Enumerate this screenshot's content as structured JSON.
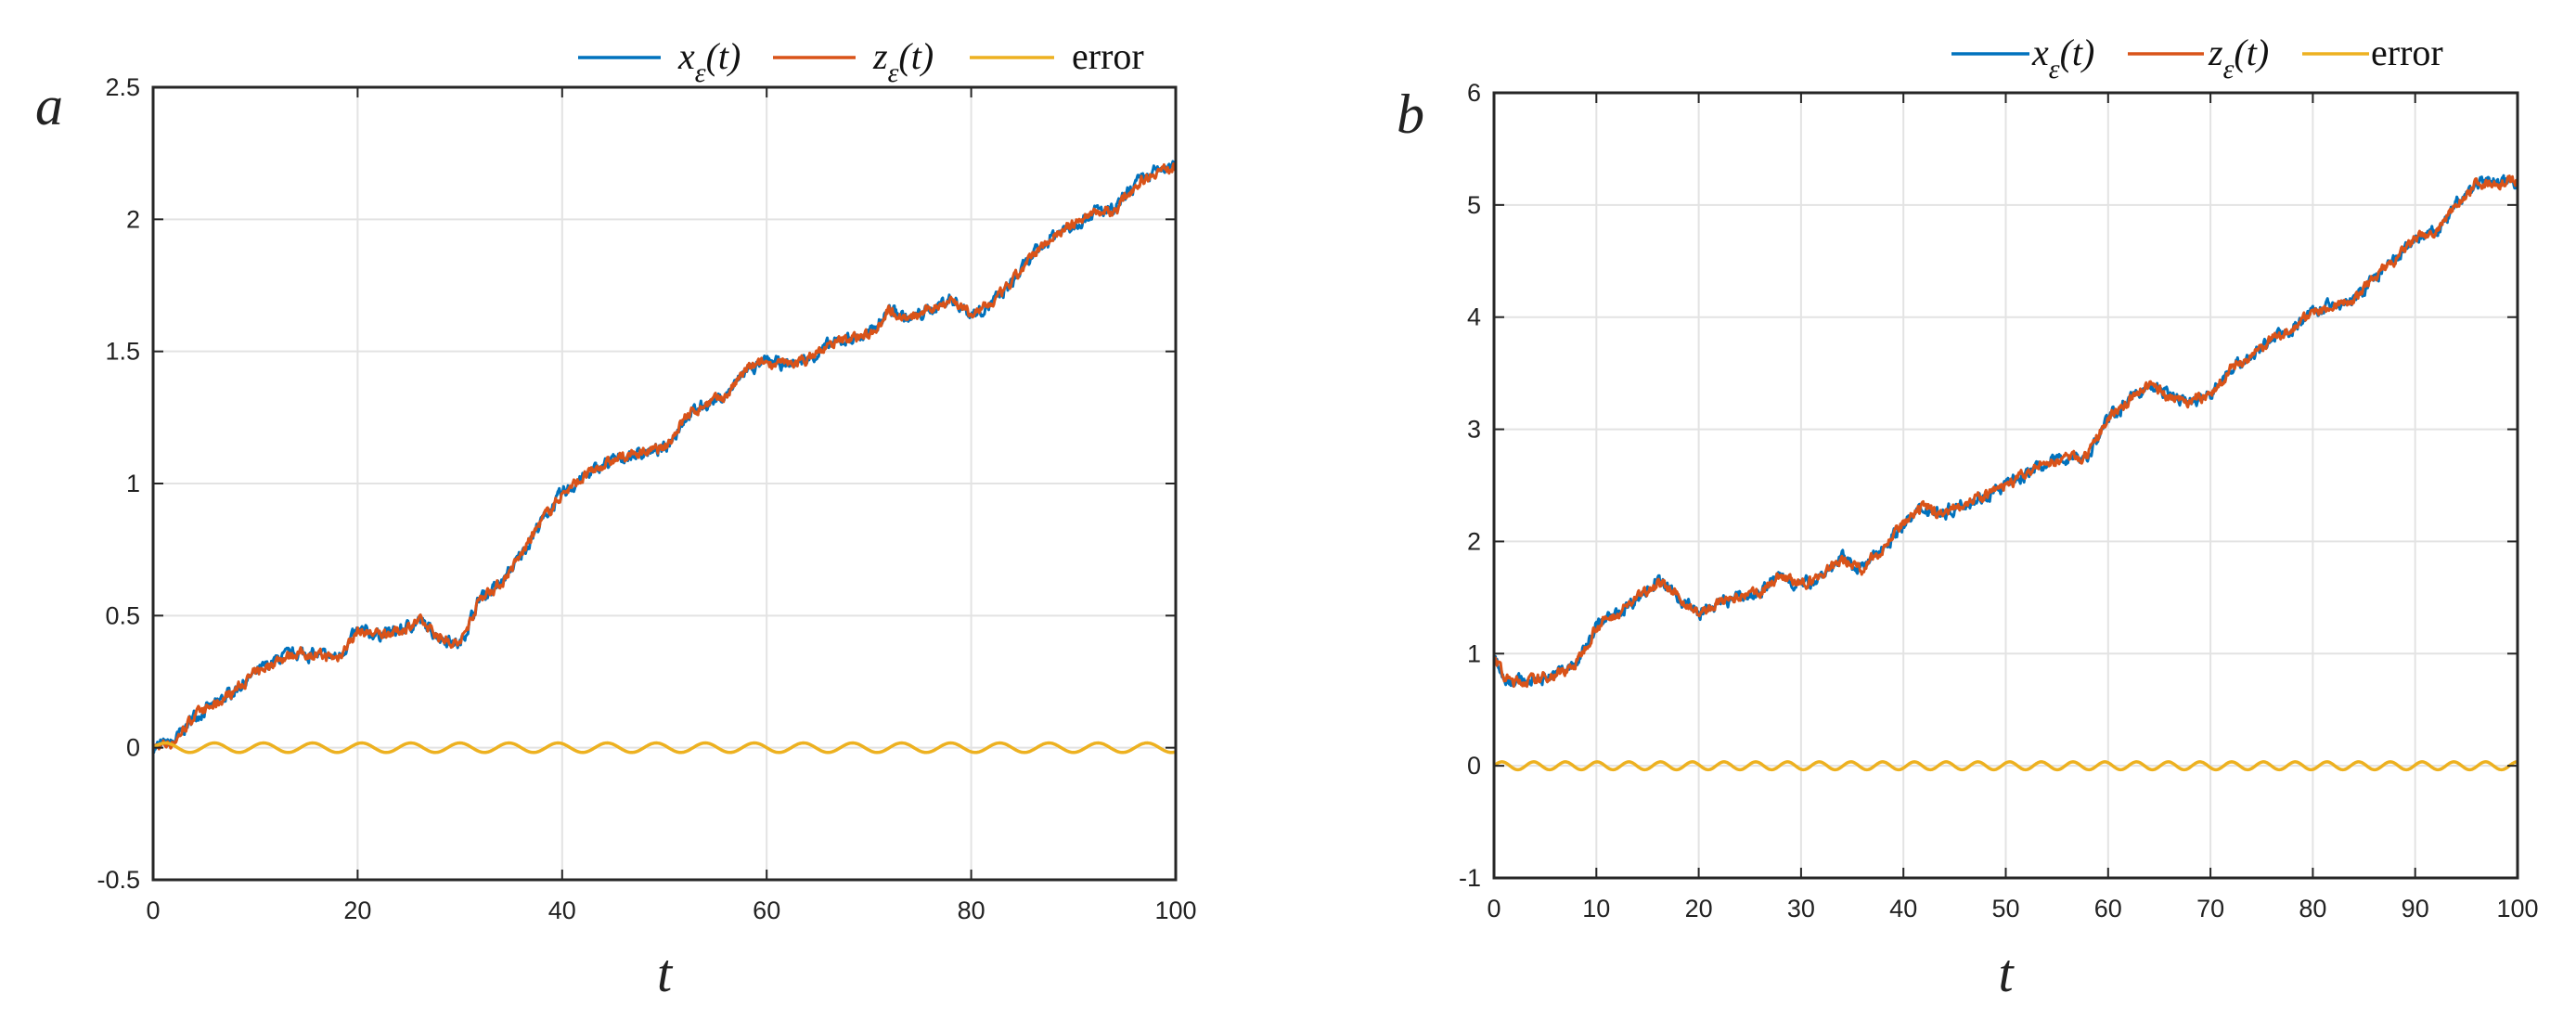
{
  "chart_data": [
    {
      "panel_label": "a",
      "type": "line",
      "xlabel": "t",
      "ylabel": "",
      "xlim": [
        0,
        100
      ],
      "ylim": [
        -0.5,
        2.5
      ],
      "xticks": [
        0,
        20,
        40,
        60,
        80,
        100
      ],
      "xtick_labels": [
        "0",
        "20",
        "40",
        "60",
        "80",
        "100"
      ],
      "yticks": [
        -0.5,
        0,
        0.5,
        1,
        1.5,
        2,
        2.5
      ],
      "ytick_labels": [
        "-0.5",
        "0",
        "0.5",
        "1",
        "1.5",
        "2",
        "2.5"
      ],
      "grid": true,
      "legend_position": "top, above plot, right-aligned, horizontal",
      "series": [
        {
          "name": "x_ε(t)",
          "color": "#0072BD",
          "x": [
            0,
            2,
            4,
            6,
            8,
            10,
            12,
            14,
            16,
            18,
            20,
            22,
            24,
            26,
            28,
            30,
            32,
            34,
            36,
            38,
            40,
            42,
            44,
            46,
            48,
            50,
            52,
            54,
            56,
            58,
            60,
            62,
            64,
            66,
            68,
            70,
            72,
            74,
            76,
            78,
            80,
            82,
            84,
            86,
            88,
            90,
            92,
            94,
            96,
            98,
            100
          ],
          "values": [
            0.0,
            0.02,
            0.12,
            0.16,
            0.22,
            0.28,
            0.33,
            0.36,
            0.35,
            0.34,
            0.44,
            0.43,
            0.44,
            0.48,
            0.42,
            0.39,
            0.57,
            0.62,
            0.73,
            0.86,
            0.96,
            1.02,
            1.07,
            1.1,
            1.12,
            1.13,
            1.25,
            1.3,
            1.33,
            1.43,
            1.46,
            1.45,
            1.47,
            1.52,
            1.55,
            1.56,
            1.66,
            1.62,
            1.66,
            1.7,
            1.64,
            1.68,
            1.76,
            1.86,
            1.94,
            1.98,
            2.03,
            2.03,
            2.13,
            2.18,
            2.2
          ]
        },
        {
          "name": "z_ε(t)",
          "color": "#D95319",
          "x": [
            0,
            2,
            4,
            6,
            8,
            10,
            12,
            14,
            16,
            18,
            20,
            22,
            24,
            26,
            28,
            30,
            32,
            34,
            36,
            38,
            40,
            42,
            44,
            46,
            48,
            50,
            52,
            54,
            56,
            58,
            60,
            62,
            64,
            66,
            68,
            70,
            72,
            74,
            76,
            78,
            80,
            82,
            84,
            86,
            88,
            90,
            92,
            94,
            96,
            98,
            100
          ],
          "values": [
            0.0,
            0.02,
            0.12,
            0.16,
            0.22,
            0.28,
            0.33,
            0.36,
            0.35,
            0.34,
            0.44,
            0.43,
            0.44,
            0.48,
            0.42,
            0.39,
            0.57,
            0.62,
            0.73,
            0.86,
            0.96,
            1.02,
            1.07,
            1.1,
            1.12,
            1.13,
            1.25,
            1.3,
            1.33,
            1.43,
            1.46,
            1.45,
            1.47,
            1.52,
            1.55,
            1.56,
            1.66,
            1.62,
            1.66,
            1.7,
            1.64,
            1.68,
            1.76,
            1.86,
            1.94,
            1.98,
            2.03,
            2.03,
            2.13,
            2.18,
            2.2
          ]
        },
        {
          "name": "error",
          "color": "#EDB120",
          "function": "0.018*sin(2*pi*t/4.8)",
          "amplitude": 0.018,
          "period": 4.8
        }
      ]
    },
    {
      "panel_label": "b",
      "type": "line",
      "xlabel": "t",
      "ylabel": "",
      "xlim": [
        0,
        100
      ],
      "ylim": [
        -1,
        6
      ],
      "xticks": [
        0,
        10,
        20,
        30,
        40,
        50,
        60,
        70,
        80,
        90,
        100
      ],
      "xtick_labels": [
        "0",
        "10",
        "20",
        "30",
        "40",
        "50",
        "60",
        "70",
        "80",
        "90",
        "100"
      ],
      "yticks": [
        -1,
        0,
        1,
        2,
        3,
        4,
        5,
        6
      ],
      "ytick_labels": [
        "-1",
        "0",
        "1",
        "2",
        "3",
        "4",
        "5",
        "6"
      ],
      "grid": true,
      "legend_position": "top, above plot, right-aligned, horizontal",
      "series": [
        {
          "name": "x_ε(t)",
          "color": "#0072BD",
          "x": [
            0,
            1,
            2,
            4,
            6,
            8,
            10,
            12,
            14,
            16,
            18,
            20,
            22,
            24,
            26,
            28,
            30,
            32,
            34,
            36,
            38,
            40,
            42,
            44,
            46,
            48,
            50,
            52,
            54,
            56,
            58,
            60,
            62,
            64,
            66,
            68,
            70,
            72,
            74,
            76,
            78,
            80,
            82,
            84,
            86,
            88,
            90,
            92,
            94,
            96,
            98,
            100
          ],
          "values": [
            1.0,
            0.78,
            0.75,
            0.76,
            0.82,
            0.9,
            1.25,
            1.35,
            1.5,
            1.65,
            1.5,
            1.35,
            1.45,
            1.5,
            1.55,
            1.7,
            1.6,
            1.7,
            1.85,
            1.75,
            1.95,
            2.15,
            2.3,
            2.25,
            2.35,
            2.4,
            2.5,
            2.6,
            2.7,
            2.75,
            2.75,
            3.1,
            3.25,
            3.4,
            3.3,
            3.25,
            3.3,
            3.55,
            3.65,
            3.8,
            3.9,
            4.05,
            4.1,
            4.15,
            4.35,
            4.5,
            4.7,
            4.75,
            5.0,
            5.2,
            5.2,
            5.22
          ]
        },
        {
          "name": "z_ε(t)",
          "color": "#D95319",
          "x": [
            0,
            1,
            2,
            4,
            6,
            8,
            10,
            12,
            14,
            16,
            18,
            20,
            22,
            24,
            26,
            28,
            30,
            32,
            34,
            36,
            38,
            40,
            42,
            44,
            46,
            48,
            50,
            52,
            54,
            56,
            58,
            60,
            62,
            64,
            66,
            68,
            70,
            72,
            74,
            76,
            78,
            80,
            82,
            84,
            86,
            88,
            90,
            92,
            94,
            96,
            98,
            100
          ],
          "values": [
            1.0,
            0.78,
            0.75,
            0.76,
            0.82,
            0.9,
            1.25,
            1.35,
            1.5,
            1.65,
            1.5,
            1.35,
            1.45,
            1.5,
            1.55,
            1.7,
            1.6,
            1.7,
            1.85,
            1.75,
            1.95,
            2.15,
            2.3,
            2.25,
            2.35,
            2.4,
            2.5,
            2.6,
            2.7,
            2.75,
            2.75,
            3.1,
            3.25,
            3.4,
            3.3,
            3.25,
            3.3,
            3.55,
            3.65,
            3.8,
            3.9,
            4.05,
            4.1,
            4.15,
            4.35,
            4.5,
            4.7,
            4.75,
            5.0,
            5.2,
            5.2,
            5.22
          ]
        },
        {
          "name": "error",
          "color": "#EDB120",
          "function": "0.035*sin(2*pi*t/3.1)",
          "amplitude": 0.035,
          "period": 3.1
        }
      ]
    }
  ]
}
